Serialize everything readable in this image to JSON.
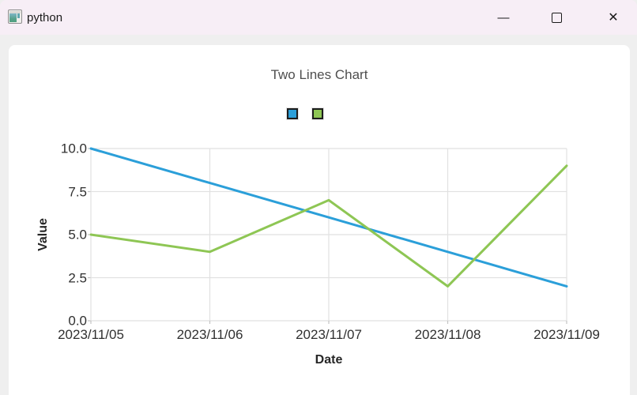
{
  "window": {
    "title": "python",
    "icons": {
      "app": "plot-window-icon",
      "minimize": "—",
      "maximize": "□",
      "close": "✕"
    }
  },
  "chart_data": {
    "type": "line",
    "title": "Two Lines Chart",
    "xlabel": "Date",
    "ylabel": "Value",
    "categories": [
      "2023/11/05",
      "2023/11/06",
      "2023/11/07",
      "2023/11/08",
      "2023/11/09"
    ],
    "series": [
      {
        "color": "#2b9fd9",
        "values": [
          10,
          8,
          6,
          4,
          2
        ]
      },
      {
        "color": "#8ec654",
        "values": [
          5,
          4,
          7,
          2,
          9
        ]
      }
    ],
    "ylim": [
      0,
      10
    ],
    "yticks": [
      10,
      7.5,
      5,
      2.5,
      0
    ],
    "ytick_labels": [
      "10.0",
      "7.5",
      "5.0",
      "2.5",
      "0.0"
    ],
    "grid": true,
    "legend_position": "top-center",
    "colors": {
      "grid": "#e1e1e1",
      "tick": "#c3c3c3"
    }
  }
}
